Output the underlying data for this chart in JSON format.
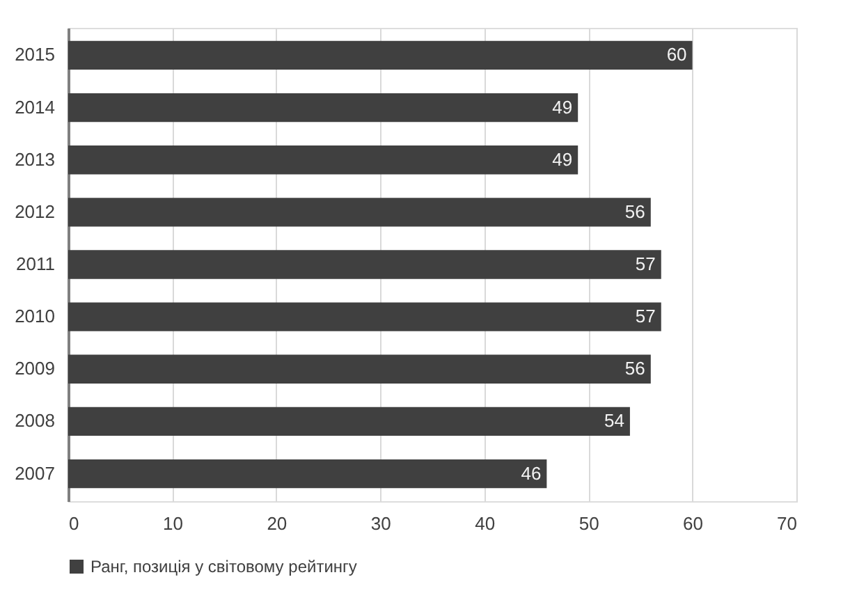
{
  "chart_data": {
    "type": "bar",
    "orientation": "horizontal",
    "categories": [
      "2015",
      "2014",
      "2013",
      "2012",
      "2011",
      "2010",
      "2009",
      "2008",
      "2007"
    ],
    "series": [
      {
        "name": "Ранг, позиція у світовому рейтингу",
        "color": "#404040",
        "values": [
          60,
          49,
          49,
          56,
          57,
          57,
          56,
          54,
          46
        ]
      }
    ],
    "xlim": [
      0,
      70
    ],
    "xticks": [
      0,
      10,
      20,
      30,
      40,
      50,
      60,
      70
    ],
    "grid": "x",
    "legend": "bottom",
    "data_labels": true
  }
}
